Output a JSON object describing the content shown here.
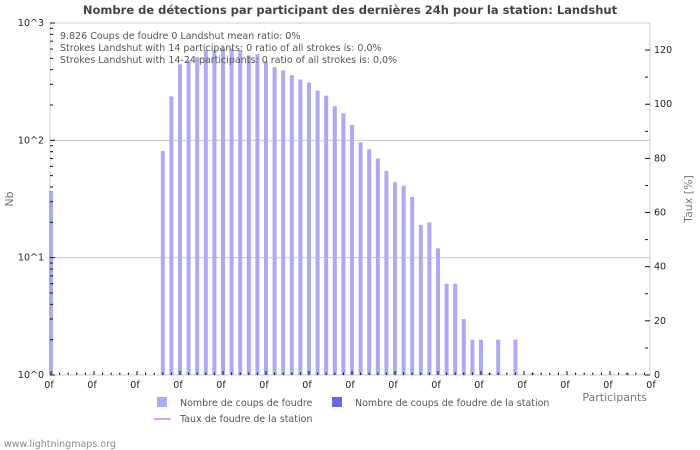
{
  "title": "Nombre de détections par participant des dernières 24h pour la station: Landshut",
  "info_lines": [
    "9.826  Coups de foudre      0 Landshut      mean ratio: 0%",
    "Strokes Landshut with 14 participants: 0       ratio of all strokes is: 0,0%",
    "Strokes Landshut with 14-24 participants: 0       ratio of all strokes is: 0,0%"
  ],
  "footer": "www.lightningmaps.org",
  "colors": {
    "bar": "#aaaaf8",
    "station_bar": "#6666f0",
    "ratio_line": "#e080e0",
    "grid": "#c8c8c8",
    "axis": "#bbbbbb"
  },
  "legend": [
    {
      "label": "Nombre de coups de foudre",
      "type": "box",
      "color": "#aaaaf8"
    },
    {
      "label": "Nombre de coups de foudre de la station",
      "type": "box",
      "color": "#6666f0"
    },
    {
      "label": "Taux de foudre de la station",
      "type": "line",
      "color": "#e080e0"
    }
  ],
  "chart_data": {
    "type": "bar",
    "title": "Nombre de détections par participant des dernières 24h pour la station: Landshut",
    "xlabel": "Participants",
    "ylabel": "Nb",
    "y2label": "Taux [%]",
    "yscale": "log",
    "ylim": [
      1,
      1000
    ],
    "y_ticks": [
      "10^0",
      "10^1",
      "10^2",
      "10^3"
    ],
    "y2lim": [
      0,
      130
    ],
    "y2_ticks": [
      0,
      20,
      40,
      60,
      80,
      100,
      120
    ],
    "x_tick_label": "0f",
    "x_tick_count": 15,
    "n_slots": 70,
    "series": [
      {
        "name": "Nombre de coups de foudre",
        "points": [
          [
            0,
            37
          ],
          [
            13,
            81
          ],
          [
            14,
            237
          ],
          [
            15,
            445
          ],
          [
            16,
            480
          ],
          [
            17,
            510
          ],
          [
            18,
            585
          ],
          [
            19,
            585
          ],
          [
            20,
            605
          ],
          [
            21,
            605
          ],
          [
            22,
            585
          ],
          [
            23,
            530
          ],
          [
            24,
            540
          ],
          [
            25,
            470
          ],
          [
            26,
            420
          ],
          [
            27,
            395
          ],
          [
            28,
            360
          ],
          [
            29,
            330
          ],
          [
            30,
            310
          ],
          [
            31,
            265
          ],
          [
            32,
            240
          ],
          [
            33,
            195
          ],
          [
            34,
            170
          ],
          [
            35,
            135
          ],
          [
            36,
            96
          ],
          [
            37,
            84
          ],
          [
            38,
            70
          ],
          [
            39,
            55
          ],
          [
            40,
            44
          ],
          [
            41,
            41
          ],
          [
            42,
            33
          ],
          [
            43,
            19
          ],
          [
            44,
            20
          ],
          [
            45,
            12
          ],
          [
            46,
            6
          ],
          [
            47,
            6
          ],
          [
            48,
            3
          ],
          [
            49,
            2
          ],
          [
            50,
            2
          ],
          [
            51,
            1
          ],
          [
            52,
            2
          ],
          [
            54,
            2
          ],
          [
            56,
            1
          ],
          [
            67,
            1
          ]
        ]
      },
      {
        "name": "Nombre de coups de foudre de la station",
        "points": []
      },
      {
        "name": "Taux de foudre de la station",
        "points": []
      }
    ],
    "legend_position": "bottom",
    "grid": true
  }
}
